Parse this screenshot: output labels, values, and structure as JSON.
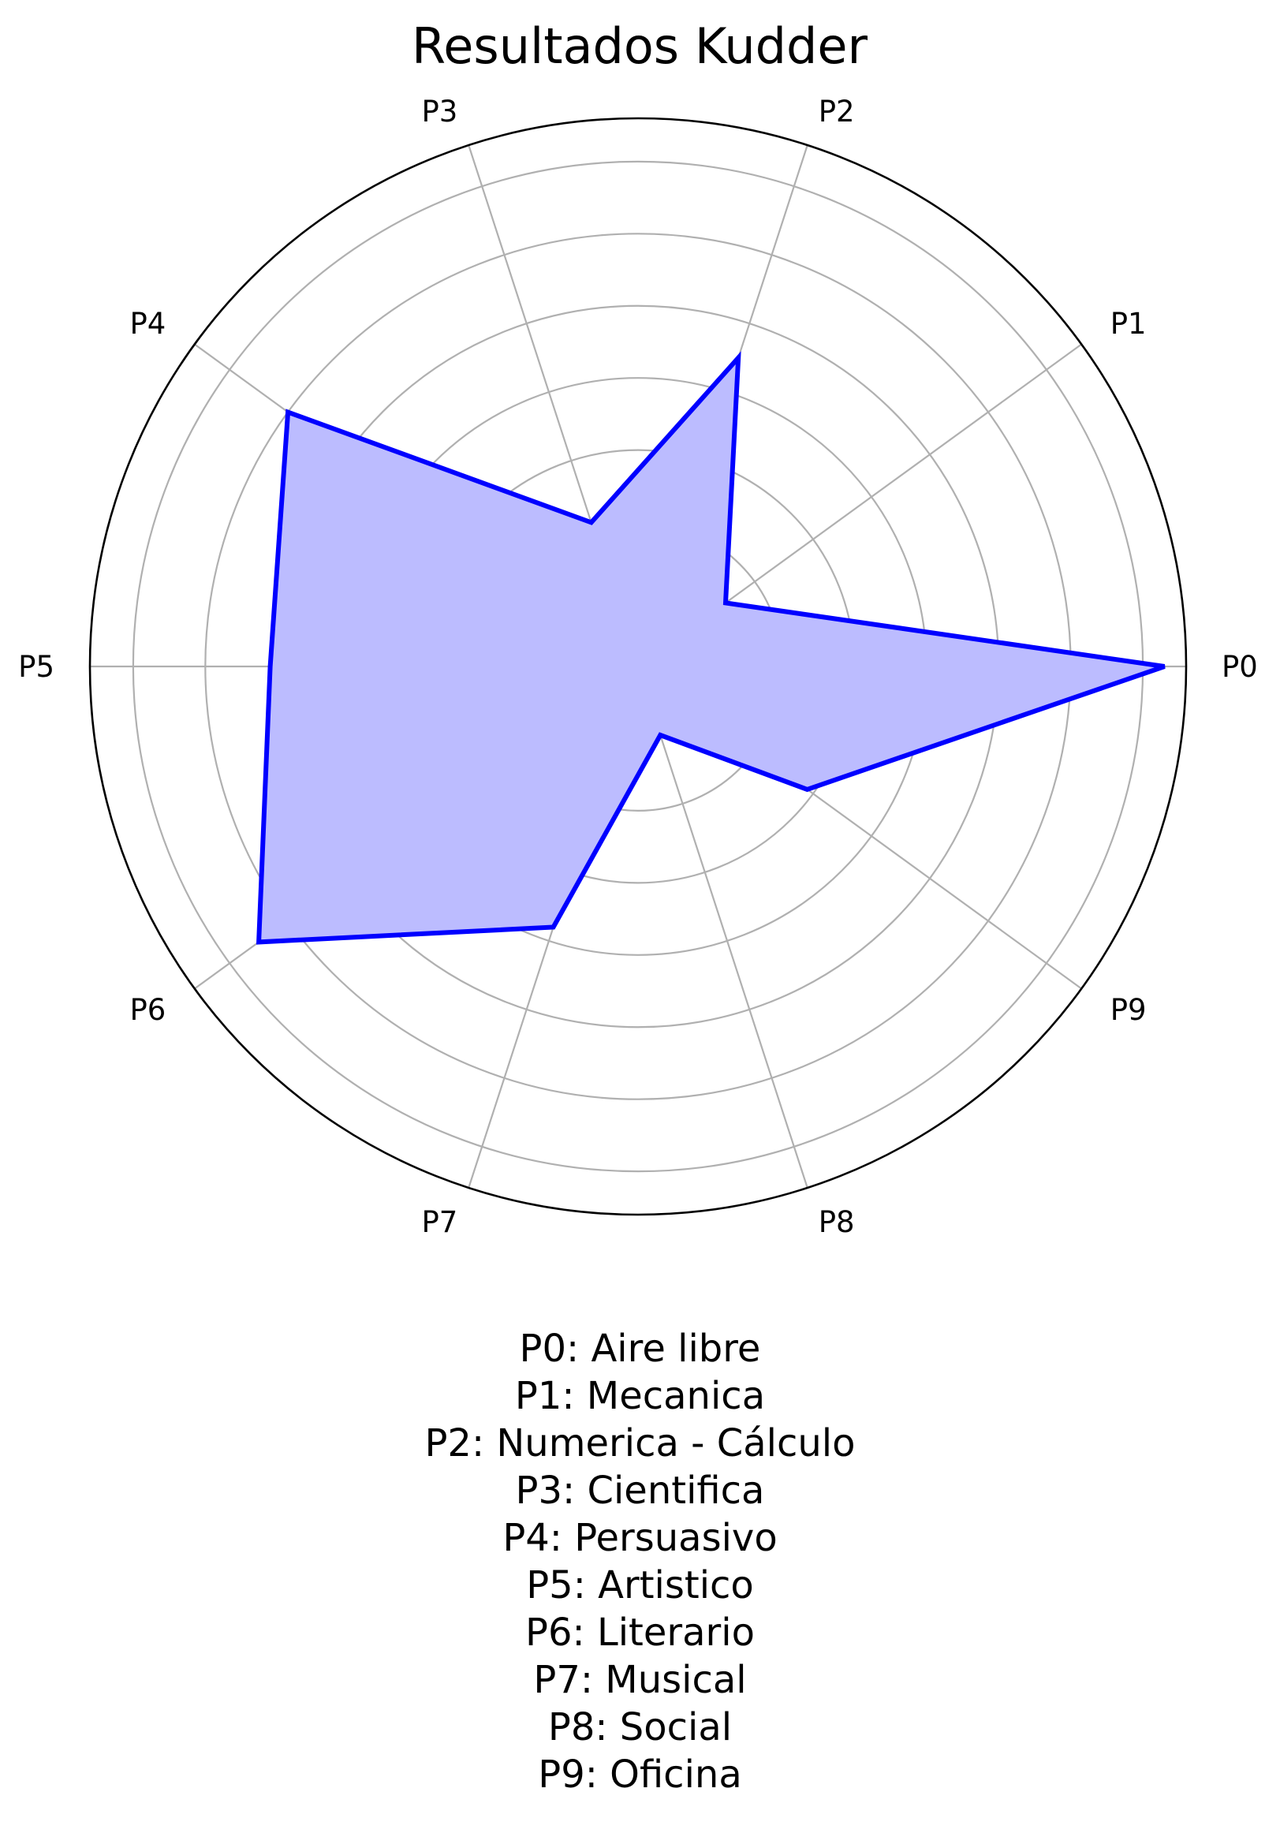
{
  "chart_data": {
    "type": "radar",
    "title": "Resultados Kudder",
    "categories": [
      "P0",
      "P1",
      "P2",
      "P3",
      "P4",
      "P5",
      "P6",
      "P7",
      "P8",
      "P9"
    ],
    "rlim": [
      0,
      7.6
    ],
    "r_ticks": [
      1,
      2,
      3,
      4,
      5,
      6,
      7
    ],
    "r_tick_labels_shown": false,
    "grid": true,
    "series": [
      {
        "values": [
          7.3,
          1.5,
          4.5,
          2.1,
          6.0,
          5.1,
          6.5,
          3.8,
          1.0,
          2.9
        ]
      }
    ],
    "colors": {
      "line": "#0000ff",
      "fill": "#bcbcff",
      "grid": "#b0b0b0",
      "frame": "#000000"
    },
    "legend_text": [
      "P0: Aire libre",
      "P1: Mecanica",
      "P2: Numerica - Cálculo",
      "P3: Cientifica",
      "P4: Persuasivo",
      "P5: Artistico",
      "P6: Literario",
      "P7: Musical",
      "P8: Social",
      "P9: Oficina"
    ]
  }
}
